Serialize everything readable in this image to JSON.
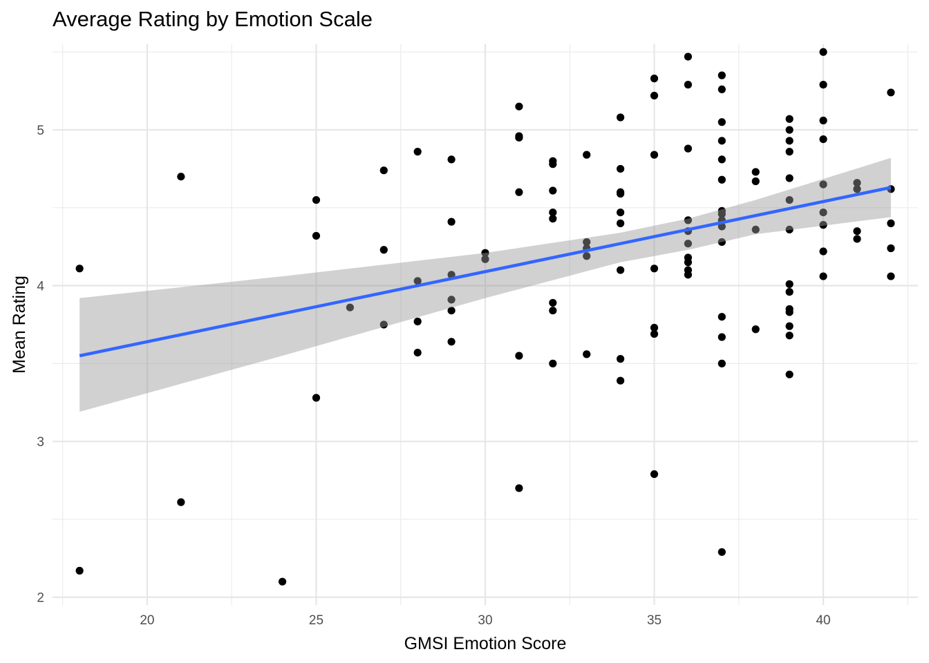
{
  "chart_data": {
    "type": "scatter",
    "title": "Average Rating by Emotion Scale",
    "xlabel": "GMSI Emotion Score",
    "ylabel": "Mean Rating",
    "xlim": [
      17.2,
      42.8
    ],
    "ylim": [
      1.95,
      5.55
    ],
    "x_ticks": [
      20,
      25,
      30,
      35,
      40
    ],
    "y_ticks": [
      2,
      3,
      4,
      5
    ],
    "grid": true,
    "points": [
      [
        18,
        4.11
      ],
      [
        18,
        2.17
      ],
      [
        21,
        4.7
      ],
      [
        21,
        2.61
      ],
      [
        24,
        2.1
      ],
      [
        25,
        4.55
      ],
      [
        25,
        4.32
      ],
      [
        25,
        3.28
      ],
      [
        26,
        3.86
      ],
      [
        27,
        4.74
      ],
      [
        27,
        4.23
      ],
      [
        27,
        3.75
      ],
      [
        28,
        4.86
      ],
      [
        28,
        4.03
      ],
      [
        28,
        3.77
      ],
      [
        28,
        3.57
      ],
      [
        29,
        4.81
      ],
      [
        29,
        4.41
      ],
      [
        29,
        4.07
      ],
      [
        29,
        3.91
      ],
      [
        29,
        3.84
      ],
      [
        29,
        3.64
      ],
      [
        30,
        4.21
      ],
      [
        30,
        4.17
      ],
      [
        31,
        5.15
      ],
      [
        31,
        4.96
      ],
      [
        31,
        4.95
      ],
      [
        31,
        4.6
      ],
      [
        31,
        3.55
      ],
      [
        31,
        2.7
      ],
      [
        32,
        4.8
      ],
      [
        32,
        4.78
      ],
      [
        32,
        4.61
      ],
      [
        32,
        4.47
      ],
      [
        32,
        4.43
      ],
      [
        32,
        3.89
      ],
      [
        32,
        3.84
      ],
      [
        32,
        3.5
      ],
      [
        33,
        4.84
      ],
      [
        33,
        4.28
      ],
      [
        33,
        4.24
      ],
      [
        33,
        4.19
      ],
      [
        33,
        3.56
      ],
      [
        34,
        5.08
      ],
      [
        34,
        4.75
      ],
      [
        34,
        4.6
      ],
      [
        34,
        4.59
      ],
      [
        34,
        4.47
      ],
      [
        34,
        4.4
      ],
      [
        34,
        4.1
      ],
      [
        34,
        3.53
      ],
      [
        34,
        3.39
      ],
      [
        35,
        5.33
      ],
      [
        35,
        5.22
      ],
      [
        35,
        4.84
      ],
      [
        35,
        4.11
      ],
      [
        35,
        3.73
      ],
      [
        35,
        3.69
      ],
      [
        35,
        2.79
      ],
      [
        36,
        5.47
      ],
      [
        36,
        5.29
      ],
      [
        36,
        4.88
      ],
      [
        36,
        4.42
      ],
      [
        36,
        4.35
      ],
      [
        36,
        4.27
      ],
      [
        36,
        4.18
      ],
      [
        36,
        4.15
      ],
      [
        36,
        4.1
      ],
      [
        36,
        4.07
      ],
      [
        37,
        5.35
      ],
      [
        37,
        5.26
      ],
      [
        37,
        5.05
      ],
      [
        37,
        4.93
      ],
      [
        37,
        4.81
      ],
      [
        37,
        4.68
      ],
      [
        37,
        4.48
      ],
      [
        37,
        4.46
      ],
      [
        37,
        4.42
      ],
      [
        37,
        4.38
      ],
      [
        37,
        4.28
      ],
      [
        37,
        3.8
      ],
      [
        37,
        3.67
      ],
      [
        37,
        3.5
      ],
      [
        37,
        2.29
      ],
      [
        38,
        4.73
      ],
      [
        38,
        4.67
      ],
      [
        38,
        4.36
      ],
      [
        38,
        3.72
      ],
      [
        39,
        5.07
      ],
      [
        39,
        5.0
      ],
      [
        39,
        4.93
      ],
      [
        39,
        4.86
      ],
      [
        39,
        4.69
      ],
      [
        39,
        4.55
      ],
      [
        39,
        4.36
      ],
      [
        39,
        4.01
      ],
      [
        39,
        3.96
      ],
      [
        39,
        3.85
      ],
      [
        39,
        3.83
      ],
      [
        39,
        3.74
      ],
      [
        39,
        3.68
      ],
      [
        39,
        3.43
      ],
      [
        40,
        5.5
      ],
      [
        40,
        5.29
      ],
      [
        40,
        5.06
      ],
      [
        40,
        4.94
      ],
      [
        40,
        4.65
      ],
      [
        40,
        4.47
      ],
      [
        40,
        4.39
      ],
      [
        40,
        4.22
      ],
      [
        40,
        4.06
      ],
      [
        41,
        4.66
      ],
      [
        41,
        4.62
      ],
      [
        41,
        4.35
      ],
      [
        41,
        4.3
      ],
      [
        42,
        5.24
      ],
      [
        42,
        4.62
      ],
      [
        42,
        4.4
      ],
      [
        42,
        4.24
      ],
      [
        42,
        4.06
      ]
    ],
    "fit_line": {
      "x": [
        18,
        42
      ],
      "y": [
        3.55,
        4.63
      ],
      "color": "#3366FF"
    },
    "confidence_band": {
      "x": [
        18,
        24,
        30,
        34,
        36,
        38,
        42
      ],
      "lower": [
        3.19,
        3.55,
        3.92,
        4.15,
        4.23,
        4.33,
        4.44
      ],
      "upper": [
        3.92,
        4.06,
        4.21,
        4.34,
        4.43,
        4.55,
        4.82
      ],
      "color": "#999999"
    }
  }
}
